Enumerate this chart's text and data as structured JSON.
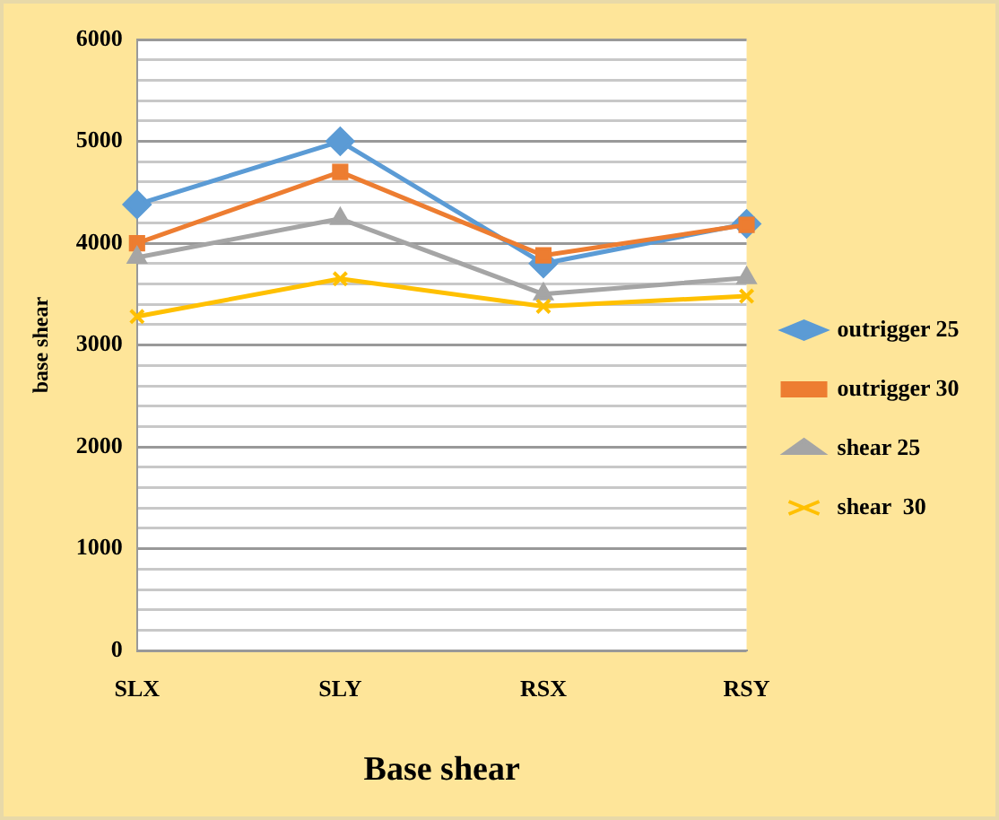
{
  "chart_data": {
    "type": "line",
    "xlabel": "Base shear",
    "ylabel": "base shear",
    "categories": [
      "SLX",
      "SLY",
      "RSX",
      "RSY"
    ],
    "series": [
      {
        "name": "outrigger 25",
        "color": "#5b9bd5",
        "marker": "diamond",
        "values": [
          4380,
          5000,
          3800,
          4190
        ]
      },
      {
        "name": "outrigger 30",
        "color": "#ed7d31",
        "marker": "square",
        "values": [
          4000,
          4700,
          3880,
          4180
        ]
      },
      {
        "name": "shear 25",
        "color": "#a5a5a5",
        "marker": "triangle",
        "values": [
          3860,
          4240,
          3500,
          3660
        ]
      },
      {
        "name": "shear  30",
        "color": "#ffc000",
        "marker": "cross",
        "values": [
          3280,
          3650,
          3380,
          3480
        ]
      }
    ],
    "ylim": [
      0,
      6000
    ],
    "yticks": [
      0,
      {
        "value": 200,
        "label": null
      },
      {
        "value": 400,
        "label": null
      },
      {
        "value": 600,
        "label": null
      },
      {
        "value": 800,
        "label": null
      },
      1000,
      {
        "value": 1200,
        "label": null
      },
      {
        "value": 1400,
        "label": null
      },
      {
        "value": 1600,
        "label": null
      },
      {
        "value": 1800,
        "label": null
      },
      2000,
      {
        "value": 2200,
        "label": null
      },
      {
        "value": 2400,
        "label": null
      },
      {
        "value": 2600,
        "label": null
      },
      {
        "value": 2800,
        "label": null
      },
      3000,
      {
        "value": 3200,
        "label": null
      },
      {
        "value": 3400,
        "label": null
      },
      {
        "value": 3600,
        "label": null
      },
      {
        "value": 3800,
        "label": null
      },
      4000,
      {
        "value": 4200,
        "label": null
      },
      {
        "value": 4400,
        "label": null
      },
      {
        "value": 4600,
        "label": null
      },
      {
        "value": 4800,
        "label": null
      },
      5000,
      {
        "value": 5200,
        "label": null
      },
      {
        "value": 5400,
        "label": null
      },
      {
        "value": 5600,
        "label": null
      },
      {
        "value": 5800,
        "label": null
      },
      6000
    ],
    "grid": "y",
    "legend": "right"
  }
}
